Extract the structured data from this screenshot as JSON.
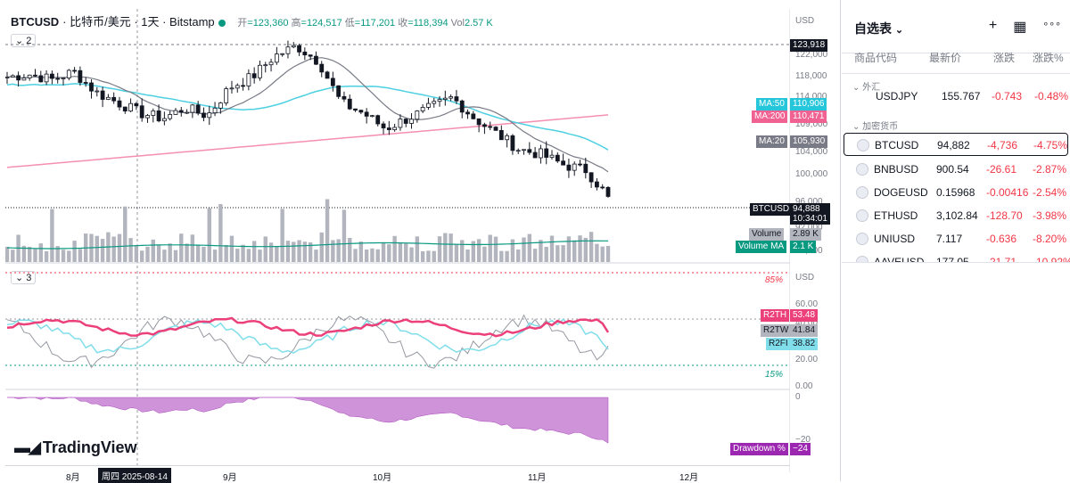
{
  "header": {
    "symbol": "BTCUSD",
    "description": "· 比特币/美元 · 1天 · Bitstamp",
    "open_label": "开",
    "open": "=123,360",
    "high_label": "高",
    "high": "=124,517",
    "low_label": "低",
    "low": "=117,201",
    "close_label": "收",
    "close": "=118,394",
    "vol_label": "Vol",
    "vol": "2.57 K",
    "pane1_collapse": "⌄ 2",
    "pane2_collapse": "⌄ 3"
  },
  "price_scale": {
    "currency": "USD",
    "ticks": [
      "122,000",
      "118,000",
      "114,000",
      "109,000",
      "104,000",
      "100,000",
      "96,000",
      "92,000",
      "88,000"
    ],
    "high_marker": "123,918",
    "ma50_label": "MA:50",
    "ma50_value": "110,906",
    "ma200_label": "MA:200",
    "ma200_value": "110,471",
    "ma20_label": "MA:20",
    "ma20_value": "105,930",
    "last_symbol": "BTCUSD",
    "last_price": "94,888",
    "countdown": "10:34:01",
    "volume_label": "Volume",
    "volume_value": "2.89 K",
    "volma_label": "Volume MA",
    "volma_value": "2.1 K"
  },
  "osc_scale": {
    "currency": "USD",
    "ticks": [
      "60.00",
      "40.00",
      "20.00",
      "0.00"
    ],
    "upper_band": "85%",
    "lower_band": "15%",
    "r2th_label": "R2TH",
    "r2th_value": "53.48",
    "r2tw_label": "R2TW",
    "r2tw_value": "41.84",
    "r2fi_label": "R2FI",
    "r2fi_value": "38.82"
  },
  "dd_scale": {
    "ticks": [
      "0",
      "−20"
    ],
    "label": "Drawdown %",
    "value": "−24"
  },
  "x_axis": {
    "labels": [
      "8月",
      "9月",
      "10月",
      "11月",
      "12月"
    ],
    "crosshair_date": "周四 2025-08-14"
  },
  "logo": "TradingView",
  "colors": {
    "up": "#089981",
    "down": "#f23645",
    "ma50": "#4dd0e1",
    "ma200": "#f06292",
    "ma20": "#787b86",
    "volume": "#b2b5be",
    "r2th": "#ec407a",
    "drawdown": "#ce93d8"
  },
  "chart_data": {
    "type": "candlestick",
    "x": [
      "2025-07",
      "2025-08",
      "2025-09",
      "2025-10",
      "2025-11"
    ],
    "close_series_approx": [
      118000,
      118500,
      117500,
      119000,
      115000,
      113000,
      111000,
      110000,
      112000,
      110500,
      116000,
      118000,
      122000,
      124000,
      121000,
      113000,
      111000,
      108000,
      110000,
      112000,
      114000,
      110000,
      107000,
      104000,
      103000,
      101000,
      100000,
      94888
    ],
    "last_close": 94888,
    "ma50_last": 110906,
    "ma200_last": 110471,
    "ma20_last": 105930,
    "period_high": 123918,
    "oscillators": {
      "R2TH": 53.48,
      "R2TW": 41.84,
      "R2FI": 38.82,
      "upper": 85,
      "lower": 15
    },
    "drawdown_last": -24
  },
  "watchlist": {
    "title": "自选表",
    "title_chevron": "⌄",
    "add_icon": "+",
    "layout_icon": "▦",
    "more_icon": "∘∘∘",
    "cols": [
      "商品代码",
      "最新价",
      "涨跌",
      "涨跌%"
    ],
    "groups": [
      "外汇",
      "加密货币"
    ],
    "partial_row": {
      "symbol": "USDJPY",
      "price": "155.767",
      "change": "-0.743",
      "pct": "-0.48%"
    },
    "rows": [
      {
        "symbol": "BTCUSD",
        "price": "94,882",
        "change": "-4,736",
        "pct": "-4.75%"
      },
      {
        "symbol": "BNBUSD",
        "price": "900.54",
        "change": "-26.61",
        "pct": "-2.87%"
      },
      {
        "symbol": "DOGEUSD",
        "price": "0.15968",
        "change": "-0.00416",
        "pct": "-2.54%"
      },
      {
        "symbol": "ETHUSD",
        "price": "3,102.84",
        "change": "-128.70",
        "pct": "-3.98%"
      },
      {
        "symbol": "UNIUSD",
        "price": "7.117",
        "change": "-0.636",
        "pct": "-8.20%"
      },
      {
        "symbol": "AAVEUSD",
        "price": "177.05",
        "change": "-21.71",
        "pct": "-10.92%"
      }
    ]
  }
}
